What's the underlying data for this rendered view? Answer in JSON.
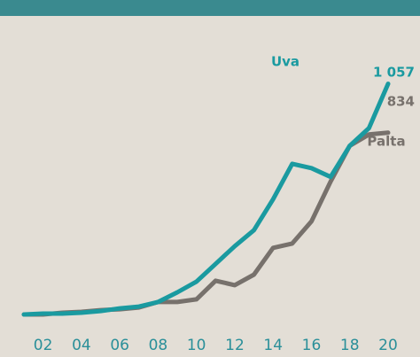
{
  "chart_data": {
    "type": "line",
    "x": [
      2001,
      2002,
      2003,
      2004,
      2005,
      2006,
      2007,
      2008,
      2009,
      2010,
      2011,
      2012,
      2013,
      2014,
      2015,
      2016,
      2017,
      2018,
      2019,
      2020
    ],
    "xlim": [
      2001,
      2020
    ],
    "xticks": [
      {
        "value": 2002,
        "label": "02"
      },
      {
        "value": 2004,
        "label": "04"
      },
      {
        "value": 2006,
        "label": "06"
      },
      {
        "value": 2008,
        "label": "08"
      },
      {
        "value": 2010,
        "label": "10"
      },
      {
        "value": 2012,
        "label": "12"
      },
      {
        "value": 2014,
        "label": "14"
      },
      {
        "value": 2016,
        "label": "16"
      },
      {
        "value": 2018,
        "label": "18"
      },
      {
        "value": 2020,
        "label": "20"
      }
    ],
    "ylim": [
      0,
      1100
    ],
    "series": [
      {
        "name": "Uva",
        "color": "#1a9aa0",
        "values": [
          4,
          8,
          8,
          12,
          20,
          32,
          40,
          61,
          105,
          154,
          235,
          316,
          389,
          530,
          692,
          672,
          632,
          774,
          855,
          1057
        ],
        "value_labels": [
          null,
          null,
          null,
          null,
          null,
          null,
          null,
          null,
          null,
          null,
          null,
          null,
          null,
          null,
          null,
          null,
          null,
          null,
          null,
          "1 057"
        ]
      },
      {
        "name": "Palta",
        "color": "#77716c",
        "values": [
          4,
          4,
          12,
          16,
          24,
          28,
          36,
          61,
          61,
          73,
          158,
          138,
          186,
          308,
          328,
          429,
          611,
          774,
          826,
          834
        ],
        "value_labels": [
          null,
          null,
          null,
          null,
          null,
          null,
          null,
          null,
          null,
          null,
          null,
          null,
          null,
          null,
          null,
          null,
          null,
          null,
          null,
          "834"
        ]
      }
    ]
  }
}
